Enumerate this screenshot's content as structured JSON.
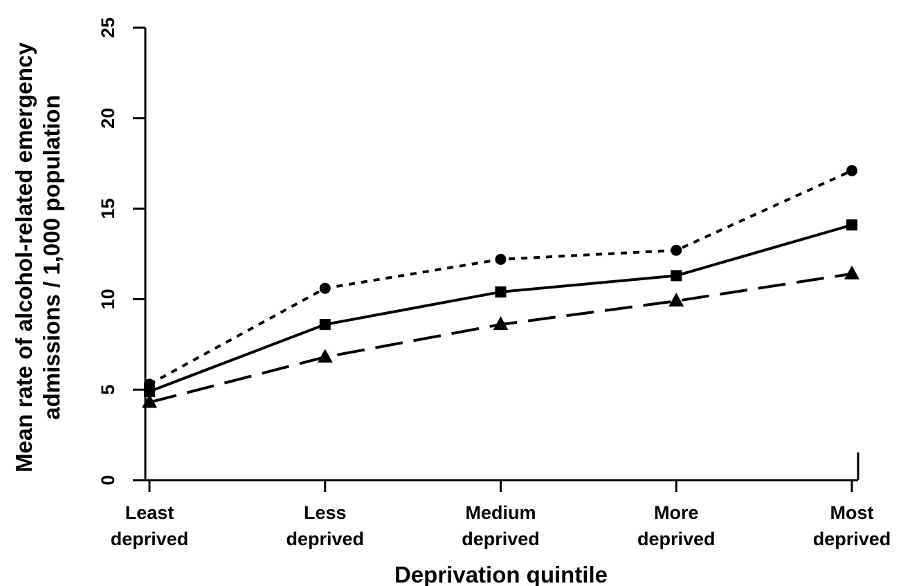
{
  "chart_data": {
    "type": "line",
    "title": "",
    "xlabel": "Deprivation quintile",
    "ylabel": [
      "Mean rate of alcohol-related emergency",
      "admissions / 1,000 population"
    ],
    "categories": [
      [
        "Least",
        "deprived"
      ],
      [
        "Less",
        "deprived"
      ],
      [
        "Medium",
        "deprived"
      ],
      [
        "More",
        "deprived"
      ],
      [
        "Most",
        "deprived"
      ]
    ],
    "ylim": [
      0,
      25
    ],
    "yticks": [
      0,
      5,
      10,
      15,
      20,
      25
    ],
    "grid": false,
    "legend": "none",
    "series": [
      {
        "marker": "circle",
        "line_style": "dotted",
        "values": [
          5.3,
          10.6,
          12.2,
          12.7,
          17.1
        ]
      },
      {
        "marker": "square",
        "line_style": "solid",
        "values": [
          4.9,
          8.6,
          10.4,
          11.3,
          14.1
        ]
      },
      {
        "marker": "triangle",
        "line_style": "dashed",
        "values": [
          4.3,
          6.8,
          8.6,
          9.9,
          11.4
        ]
      }
    ],
    "colors": {
      "line": "#000000",
      "marker": "#000000"
    }
  }
}
